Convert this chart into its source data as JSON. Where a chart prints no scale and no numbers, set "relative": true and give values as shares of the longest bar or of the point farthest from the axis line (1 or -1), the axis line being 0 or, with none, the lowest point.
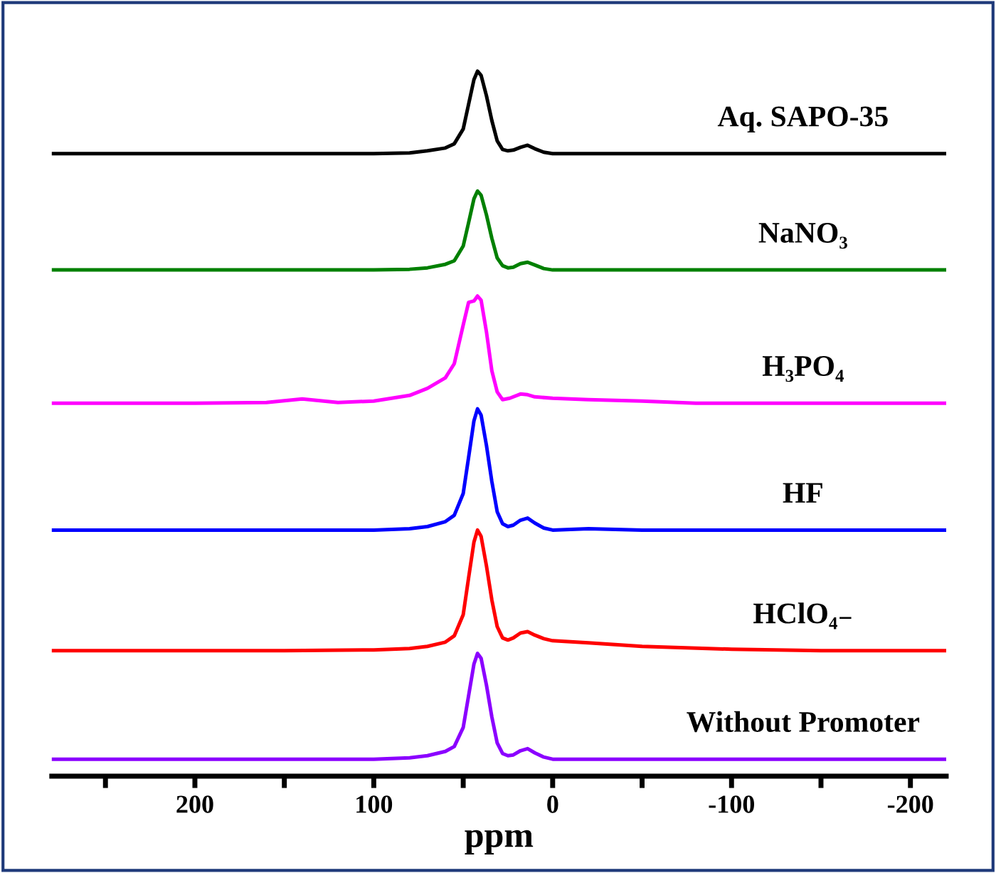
{
  "chart_data": {
    "type": "line",
    "relative": true,
    "xlabel": "ppm",
    "xlim": [
      280,
      -220
    ],
    "xticks": [
      {
        "value": 250,
        "label": null
      },
      200,
      {
        "value": 150,
        "label": null
      },
      100,
      {
        "value": 50,
        "label": null
      },
      0,
      {
        "value": -50,
        "label": null
      },
      -100,
      {
        "value": -150,
        "label": null
      },
      -200
    ],
    "x": [
      280,
      200,
      150,
      100,
      80,
      70,
      60,
      55,
      50,
      47,
      44,
      42,
      40,
      37,
      34,
      31,
      28,
      25,
      22,
      18,
      14,
      10,
      5,
      0,
      -20,
      -50,
      -100,
      -150,
      -220
    ],
    "grid": false,
    "legend": false,
    "marker": "none",
    "line_style": "solid",
    "series": [
      {
        "name": "Aq. SAPO-35",
        "color": "#000000",
        "values": [
          0.883,
          0.883,
          0.883,
          0.883,
          0.884,
          0.887,
          0.891,
          0.897,
          0.918,
          0.953,
          0.988,
          1.0,
          0.994,
          0.965,
          0.93,
          0.901,
          0.889,
          0.887,
          0.888,
          0.892,
          0.895,
          0.89,
          0.885,
          0.883,
          0.883,
          0.883,
          0.883,
          0.883,
          0.883
        ]
      },
      {
        "name": "NaNO₃",
        "color": "#008000",
        "values": [
          0.718,
          0.718,
          0.718,
          0.718,
          0.719,
          0.721,
          0.726,
          0.731,
          0.752,
          0.785,
          0.819,
          0.83,
          0.824,
          0.796,
          0.763,
          0.735,
          0.724,
          0.721,
          0.722,
          0.727,
          0.729,
          0.725,
          0.72,
          0.718,
          0.718,
          0.718,
          0.718,
          0.718,
          0.718
        ]
      },
      {
        "name": "H₃PO₄",
        "color": "#ff00ff",
        "x": [
          280,
          200,
          160,
          140,
          120,
          100,
          80,
          70,
          60,
          55,
          50,
          47,
          44,
          42,
          40,
          37,
          34,
          31,
          28,
          24,
          18,
          14,
          10,
          0,
          -20,
          -50,
          -80,
          -100,
          -150,
          -220
        ],
        "values": [
          0.529,
          0.529,
          0.53,
          0.535,
          0.53,
          0.532,
          0.54,
          0.55,
          0.565,
          0.585,
          0.64,
          0.672,
          0.674,
          0.681,
          0.675,
          0.63,
          0.575,
          0.545,
          0.534,
          0.536,
          0.542,
          0.541,
          0.538,
          0.536,
          0.534,
          0.532,
          0.529,
          0.529,
          0.529,
          0.529
        ]
      },
      {
        "name": "HF",
        "color": "#0000ff",
        "values": [
          0.349,
          0.349,
          0.349,
          0.349,
          0.351,
          0.354,
          0.361,
          0.37,
          0.401,
          0.452,
          0.504,
          0.521,
          0.512,
          0.469,
          0.418,
          0.375,
          0.358,
          0.354,
          0.356,
          0.363,
          0.366,
          0.359,
          0.352,
          0.349,
          0.351,
          0.349,
          0.349,
          0.349,
          0.349
        ]
      },
      {
        "name": "HClO₄₋",
        "color": "#ff0000",
        "values": [
          0.178,
          0.178,
          0.178,
          0.179,
          0.181,
          0.184,
          0.19,
          0.199,
          0.229,
          0.281,
          0.332,
          0.349,
          0.34,
          0.298,
          0.25,
          0.212,
          0.196,
          0.193,
          0.196,
          0.203,
          0.205,
          0.2,
          0.195,
          0.192,
          0.189,
          0.184,
          0.18,
          0.178,
          0.178
        ]
      },
      {
        "name": "Without Promoter",
        "color": "#8b00ff",
        "values": [
          0.024,
          0.024,
          0.024,
          0.024,
          0.026,
          0.029,
          0.035,
          0.042,
          0.069,
          0.114,
          0.159,
          0.174,
          0.167,
          0.129,
          0.084,
          0.047,
          0.032,
          0.029,
          0.03,
          0.036,
          0.039,
          0.033,
          0.027,
          0.024,
          0.024,
          0.024,
          0.024,
          0.024,
          0.024
        ]
      }
    ]
  }
}
